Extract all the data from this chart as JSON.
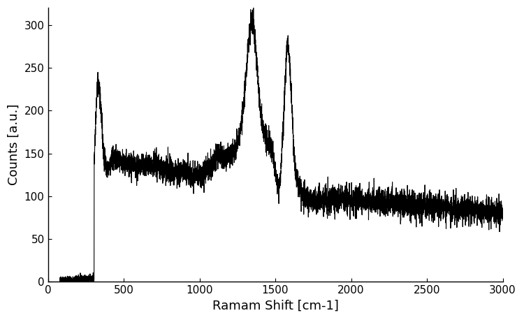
{
  "xlabel": "Ramam Shift [cm-1]",
  "ylabel": "Counts [a.u.]",
  "xlim": [
    0,
    3000
  ],
  "ylim": [
    0,
    320
  ],
  "xticks": [
    0,
    500,
    1000,
    1500,
    2000,
    2500,
    3000
  ],
  "yticks": [
    0,
    50,
    100,
    150,
    200,
    250,
    300
  ],
  "line_color": "#000000",
  "line_width": 0.8,
  "bg_color": "#ffffff",
  "xlabel_fontsize": 13,
  "ylabel_fontsize": 13,
  "tick_fontsize": 11,
  "figsize": [
    7.5,
    4.58
  ],
  "dpi": 100
}
